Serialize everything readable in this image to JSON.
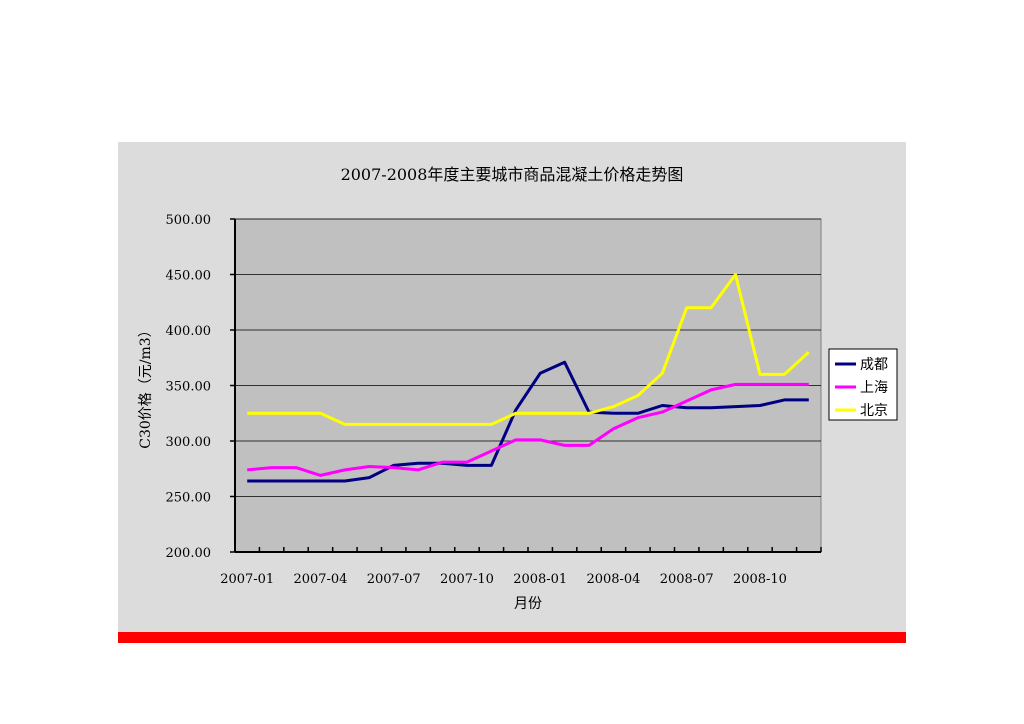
{
  "chart_data": {
    "type": "line",
    "title": "2007-2008年度主要城市商品混凝土价格走势图",
    "xlabel": "月份",
    "ylabel": "C30价格（元/m3）",
    "ylim": [
      200,
      500
    ],
    "yticks": [
      "200.00",
      "250.00",
      "300.00",
      "350.00",
      "400.00",
      "450.00",
      "500.00"
    ],
    "x": [
      "2007-01",
      "2007-02",
      "2007-03",
      "2007-04",
      "2007-05",
      "2007-06",
      "2007-07",
      "2007-08",
      "2007-09",
      "2007-10",
      "2007-11",
      "2007-12",
      "2008-01",
      "2008-02",
      "2008-03",
      "2008-04",
      "2008-05",
      "2008-06",
      "2008-07",
      "2008-08",
      "2008-09",
      "2008-10",
      "2008-11",
      "2008-12"
    ],
    "xtick_labels": [
      "2007-01",
      "2007-04",
      "2007-07",
      "2007-10",
      "2008-01",
      "2008-04",
      "2008-07",
      "2008-10"
    ],
    "grid": true,
    "legend_position": "right",
    "series": [
      {
        "name": "成都",
        "color": "#000080",
        "values": [
          264,
          264,
          264,
          264,
          264,
          267,
          278,
          280,
          280,
          278,
          278,
          328,
          361,
          371,
          326,
          325,
          325,
          332,
          330,
          330,
          331,
          332,
          337,
          337
        ]
      },
      {
        "name": "上海",
        "color": "#ff00ff",
        "values": [
          274,
          276,
          276,
          269,
          274,
          277,
          276,
          274,
          281,
          281,
          291,
          301,
          301,
          296,
          296,
          311,
          321,
          326,
          336,
          346,
          351,
          351,
          351,
          351
        ]
      },
      {
        "name": "北京",
        "color": "#ffff00",
        "values": [
          325,
          325,
          325,
          325,
          315,
          315,
          315,
          315,
          315,
          315,
          315,
          325,
          325,
          325,
          325,
          331,
          341,
          361,
          420,
          420,
          450,
          360,
          360,
          380
        ]
      }
    ]
  }
}
